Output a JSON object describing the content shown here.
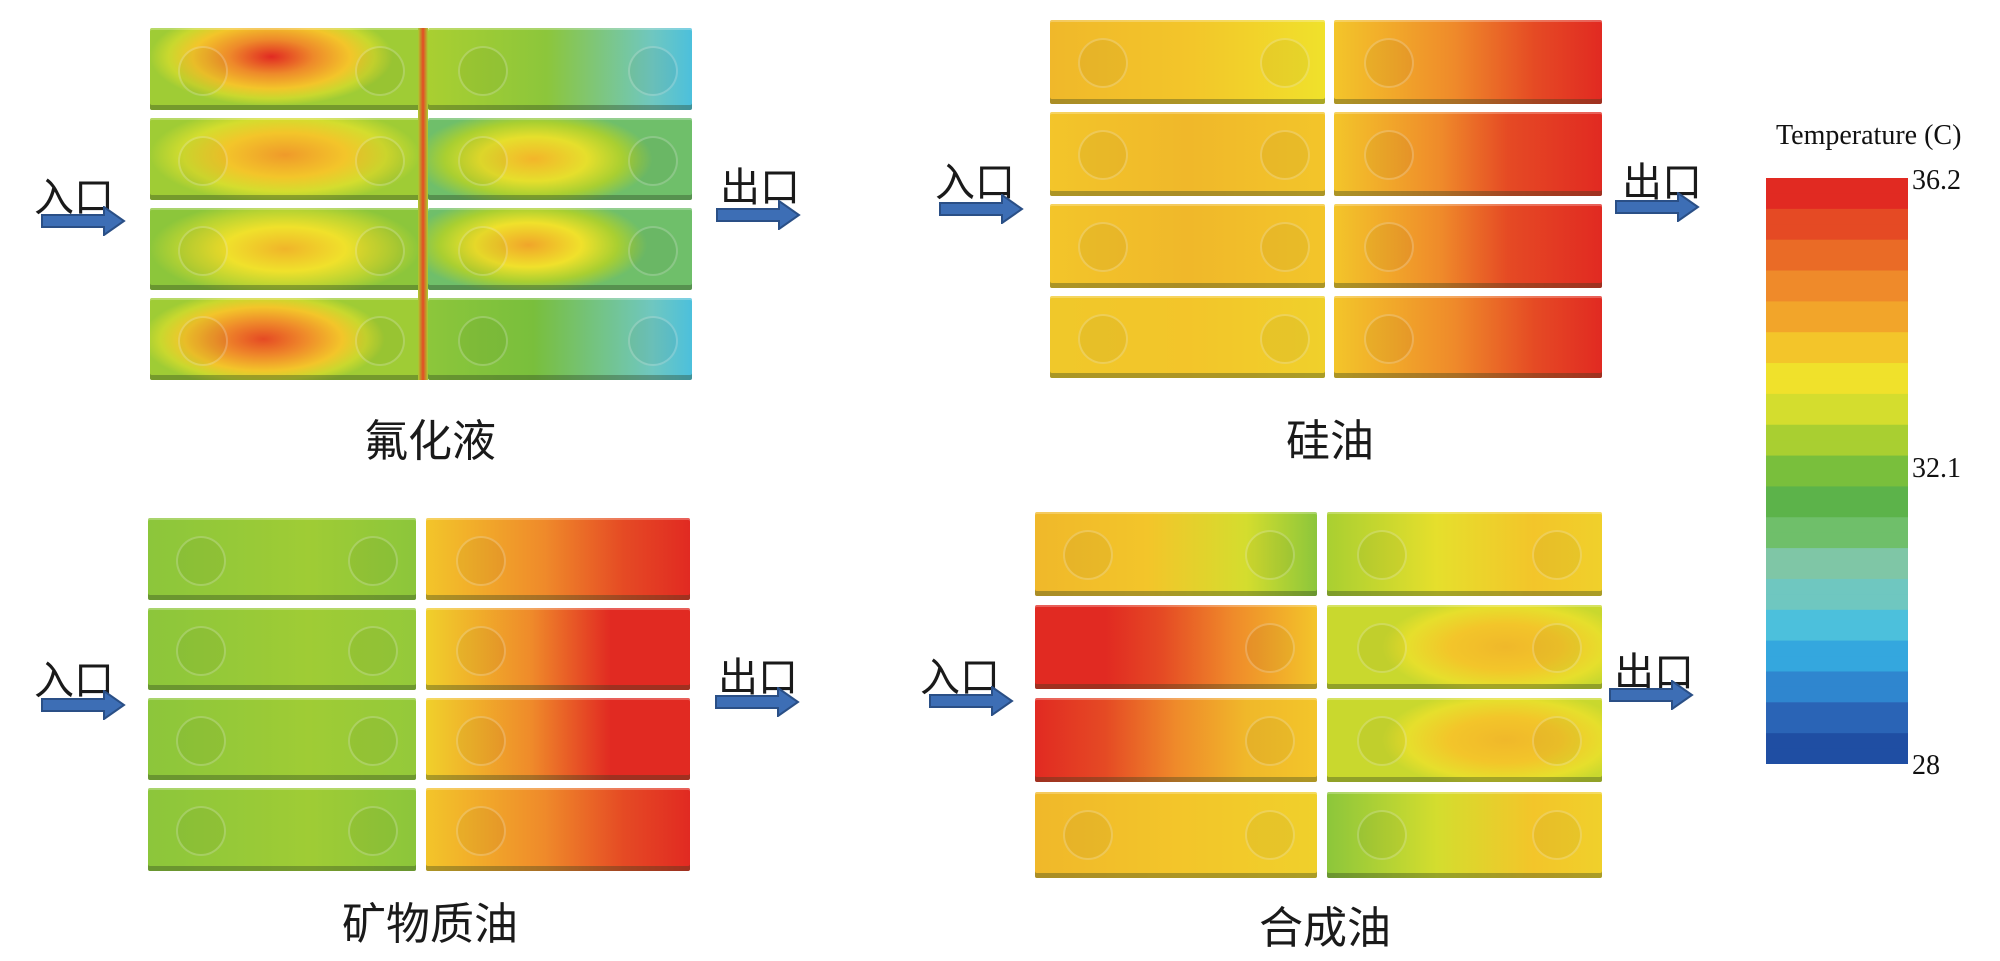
{
  "panels": [
    {
      "caption": "氟化液",
      "inlet": "入口",
      "outlet": "出口"
    },
    {
      "caption": "硅油",
      "inlet": "入口",
      "outlet": "出口"
    },
    {
      "caption": "矿物质油",
      "inlet": "入口",
      "outlet": "出口"
    },
    {
      "caption": "合成油",
      "inlet": "入口",
      "outlet": "出口"
    }
  ],
  "legend": {
    "title": "Temperature (C)",
    "max": "36.2",
    "mid": "32.1",
    "min": "28",
    "colors": [
      "#1f4ea3",
      "#2a64b6",
      "#2f86cf",
      "#34a7de",
      "#4cc0dc",
      "#6fc7c0",
      "#7fc6a6",
      "#6fbf6a",
      "#5cb34a",
      "#79bf3c",
      "#a9cf31",
      "#d4dd2e",
      "#f0e12b",
      "#f3c52a",
      "#f2a52a",
      "#ef8a2a",
      "#ea6b26",
      "#e54a24",
      "#e12a22"
    ]
  },
  "icons": {
    "flow_arrow": "right-arrow-icon"
  }
}
